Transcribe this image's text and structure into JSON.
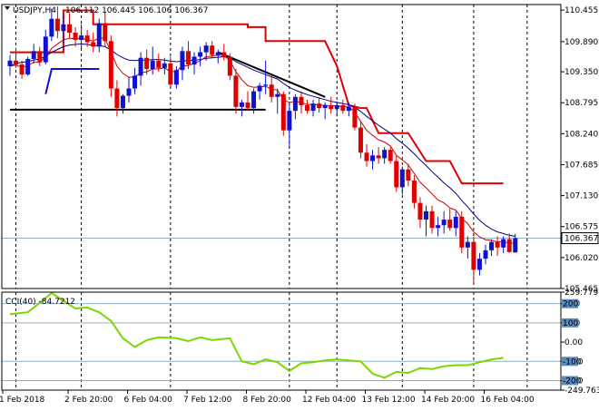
{
  "header": {
    "symbol_label": "USDJPY,H4",
    "ohlc_label": "106.112 106.445 106.106 106.367"
  },
  "indicator_header": {
    "label": "CCI(40) -84.7212"
  },
  "colors": {
    "bull": "#1010d0",
    "bear": "#e00000",
    "trend": "#000000",
    "upper_step": "#e00000",
    "lower_step": "#1010d0",
    "slow_ma": "#000080",
    "fast_ma": "#cc0000",
    "cci_line": "#7cd600",
    "level_line": "#8fb0c8",
    "grid": "#000000",
    "price_tag_bg": "#ffffff"
  },
  "chart_data": [
    {
      "type": "candlestick",
      "title": "USDJPY,H4",
      "ylim": [
        105.465,
        110.555
      ],
      "price_axis_ticks": [
        "110.455",
        "109.890",
        "109.350",
        "108.795",
        "108.240",
        "107.685",
        "107.130",
        "106.575",
        "106.020",
        "105.465"
      ],
      "price_axis_values": [
        110.455,
        109.89,
        109.35,
        108.795,
        108.24,
        107.685,
        107.13,
        106.575,
        106.02,
        105.465
      ],
      "current_price_label": "106.367",
      "current_price": 106.367,
      "x_ticks": [
        "1 Feb 2018",
        "2 Feb 20:00",
        "6 Feb 04:00",
        "7 Feb 12:00",
        "8 Feb 20:00",
        "12 Feb 04:00",
        "13 Feb 12:00",
        "14 Feb 20:00",
        "16 Feb 04:00"
      ],
      "x_tick_bars": [
        0,
        11,
        21,
        31,
        41,
        51,
        61,
        71,
        81
      ],
      "period_separator_bars": [
        1,
        12,
        27,
        47,
        55,
        66,
        78,
        87
      ],
      "candles": [
        [
          109.45,
          109.65,
          109.28,
          109.55
        ],
        [
          109.55,
          109.78,
          109.42,
          109.48
        ],
        [
          109.48,
          109.55,
          109.22,
          109.3
        ],
        [
          109.3,
          109.62,
          109.28,
          109.58
        ],
        [
          109.58,
          109.85,
          109.5,
          109.72
        ],
        [
          109.72,
          109.8,
          109.45,
          109.52
        ],
        [
          109.52,
          110.1,
          109.48,
          109.98
        ],
        [
          109.98,
          110.48,
          109.9,
          110.3
        ],
        [
          110.3,
          110.52,
          109.95,
          110.08
        ],
        [
          110.08,
          110.35,
          109.85,
          110.2
        ],
        [
          110.2,
          110.4,
          109.95,
          110.05
        ],
        [
          110.05,
          110.15,
          109.8,
          109.92
        ],
        [
          109.92,
          110.2,
          109.75,
          110.0
        ],
        [
          110.0,
          110.1,
          109.8,
          109.88
        ],
        [
          109.88,
          110.05,
          109.7,
          109.8
        ],
        [
          109.8,
          110.3,
          109.7,
          110.22
        ],
        [
          110.22,
          110.42,
          109.8,
          109.9
        ],
        [
          109.9,
          110.0,
          108.9,
          109.05
        ],
        [
          109.05,
          109.2,
          108.55,
          108.7
        ],
        [
          108.7,
          108.95,
          108.6,
          108.92
        ],
        [
          108.92,
          109.25,
          108.8,
          109.05
        ],
        [
          109.05,
          109.42,
          108.95,
          109.28
        ],
        [
          109.28,
          109.7,
          109.1,
          109.6
        ],
        [
          109.6,
          109.75,
          109.3,
          109.4
        ],
        [
          109.4,
          109.8,
          109.3,
          109.55
        ],
        [
          109.55,
          109.68,
          109.35,
          109.42
        ],
        [
          109.42,
          109.6,
          109.3,
          109.5
        ],
        [
          109.5,
          109.62,
          109.05,
          109.12
        ],
        [
          109.12,
          109.45,
          109.05,
          109.38
        ],
        [
          109.38,
          109.8,
          109.2,
          109.72
        ],
        [
          109.72,
          109.9,
          109.4,
          109.48
        ],
        [
          109.48,
          109.7,
          109.3,
          109.62
        ],
        [
          109.62,
          109.8,
          109.45,
          109.7
        ],
        [
          109.7,
          109.88,
          109.55,
          109.82
        ],
        [
          109.82,
          109.9,
          109.6,
          109.65
        ],
        [
          109.65,
          109.75,
          109.5,
          109.7
        ],
        [
          109.7,
          109.85,
          109.55,
          109.62
        ],
        [
          109.62,
          109.68,
          109.2,
          109.28
        ],
        [
          109.28,
          109.4,
          108.6,
          108.72
        ],
        [
          108.72,
          108.85,
          108.55,
          108.8
        ],
        [
          108.8,
          109.0,
          108.65,
          108.7
        ],
        [
          108.7,
          109.05,
          108.6,
          109.0
        ],
        [
          109.0,
          109.15,
          108.85,
          109.1
        ],
        [
          109.1,
          109.55,
          108.95,
          109.12
        ],
        [
          109.12,
          109.3,
          108.8,
          108.9
        ],
        [
          108.9,
          109.05,
          108.6,
          108.95
        ],
        [
          108.95,
          109.0,
          108.2,
          108.3
        ],
        [
          108.3,
          108.8,
          108.0,
          108.65
        ],
        [
          108.65,
          108.95,
          108.5,
          108.9
        ],
        [
          108.9,
          109.0,
          108.6,
          108.75
        ],
        [
          108.75,
          108.85,
          108.6,
          108.65
        ],
        [
          108.65,
          108.85,
          108.55,
          108.78
        ],
        [
          108.78,
          108.88,
          108.62,
          108.7
        ],
        [
          108.7,
          108.8,
          108.5,
          108.75
        ],
        [
          108.75,
          108.9,
          108.6,
          108.68
        ],
        [
          108.68,
          108.82,
          108.55,
          108.75
        ],
        [
          108.75,
          108.85,
          108.6,
          108.65
        ],
        [
          108.65,
          108.8,
          108.55,
          108.72
        ],
        [
          108.72,
          108.78,
          108.3,
          108.35
        ],
        [
          108.35,
          108.45,
          107.8,
          107.9
        ],
        [
          107.9,
          108.05,
          107.65,
          107.75
        ],
        [
          107.75,
          107.95,
          107.6,
          107.85
        ],
        [
          107.85,
          108.0,
          107.7,
          107.8
        ],
        [
          107.8,
          108.0,
          107.7,
          107.95
        ],
        [
          107.95,
          108.0,
          107.7,
          107.75
        ],
        [
          107.75,
          107.85,
          107.2,
          107.28
        ],
        [
          107.28,
          107.65,
          107.15,
          107.6
        ],
        [
          107.6,
          107.7,
          107.3,
          107.4
        ],
        [
          107.4,
          107.5,
          106.9,
          107.0
        ],
        [
          107.0,
          107.1,
          106.55,
          106.7
        ],
        [
          106.7,
          106.95,
          106.4,
          106.85
        ],
        [
          106.85,
          106.95,
          106.45,
          106.55
        ],
        [
          106.55,
          106.75,
          106.4,
          106.6
        ],
        [
          106.6,
          106.85,
          106.45,
          106.7
        ],
        [
          106.7,
          106.9,
          106.5,
          106.55
        ],
        [
          106.55,
          106.85,
          106.4,
          106.75
        ],
        [
          106.75,
          106.85,
          106.1,
          106.2
        ],
        [
          106.2,
          106.4,
          106.0,
          106.3
        ],
        [
          106.3,
          106.4,
          105.55,
          105.8
        ],
        [
          105.8,
          106.1,
          105.7,
          106.0
        ],
        [
          106.0,
          106.25,
          105.9,
          106.15
        ],
        [
          106.15,
          106.35,
          106.05,
          106.3
        ],
        [
          106.3,
          106.4,
          106.05,
          106.2
        ],
        [
          106.2,
          106.4,
          106.1,
          106.35
        ],
        [
          106.35,
          106.45,
          106.1,
          106.12
        ],
        [
          106.112,
          106.445,
          106.106,
          106.367
        ]
      ],
      "upper_step_line": [
        [
          0,
          109.7
        ],
        [
          9,
          109.7
        ],
        [
          9,
          110.45
        ],
        [
          14,
          110.45
        ],
        [
          14,
          110.2
        ],
        [
          40,
          110.2
        ],
        [
          40,
          110.15
        ],
        [
          43,
          110.15
        ],
        [
          43,
          109.9
        ],
        [
          53,
          109.9
        ],
        [
          53,
          109.9
        ],
        [
          55,
          109.45
        ],
        [
          57,
          108.75
        ],
        [
          59,
          108.7
        ],
        [
          60,
          108.7
        ],
        [
          62,
          108.25
        ],
        [
          67,
          108.25
        ],
        [
          70,
          107.75
        ],
        [
          74,
          107.75
        ],
        [
          76,
          107.35
        ],
        [
          83,
          107.35
        ]
      ],
      "lower_step_line": [
        [
          6,
          108.95
        ],
        [
          7,
          109.4
        ],
        [
          15,
          109.4
        ]
      ],
      "trend_lines": [
        [
          [
            0,
            108.67
          ],
          [
            43,
            108.67
          ]
        ],
        [
          [
            35,
            109.7
          ],
          [
            53,
            108.9
          ]
        ]
      ],
      "slow_ma": [
        109.45,
        109.5,
        109.52,
        109.53,
        109.56,
        109.58,
        109.63,
        109.7,
        109.75,
        109.8,
        109.83,
        109.84,
        109.85,
        109.84,
        109.82,
        109.82,
        109.8,
        109.74,
        109.66,
        109.6,
        109.56,
        109.55,
        109.56,
        109.56,
        109.57,
        109.57,
        109.56,
        109.54,
        109.53,
        109.54,
        109.55,
        109.56,
        109.57,
        109.59,
        109.6,
        109.61,
        109.62,
        109.6,
        109.53,
        109.48,
        109.43,
        109.38,
        109.34,
        109.3,
        109.26,
        109.22,
        109.14,
        109.07,
        109.02,
        108.98,
        108.94,
        108.91,
        108.88,
        108.85,
        108.82,
        108.8,
        108.78,
        108.76,
        108.72,
        108.64,
        108.55,
        108.47,
        108.39,
        108.32,
        108.25,
        108.15,
        108.07,
        107.98,
        107.88,
        107.77,
        107.67,
        107.56,
        107.46,
        107.36,
        107.27,
        107.17,
        107.04,
        106.93,
        106.8,
        106.69,
        106.6,
        106.53,
        106.48,
        106.45,
        106.42,
        106.4
      ],
      "fast_ma": [
        109.45,
        109.47,
        109.43,
        109.46,
        109.52,
        109.52,
        109.62,
        109.77,
        109.85,
        109.92,
        109.95,
        109.94,
        109.95,
        109.93,
        109.9,
        109.96,
        109.95,
        109.7,
        109.45,
        109.32,
        109.25,
        109.26,
        109.33,
        109.35,
        109.4,
        109.4,
        109.42,
        109.35,
        109.36,
        109.45,
        109.46,
        109.5,
        109.55,
        109.62,
        109.63,
        109.65,
        109.64,
        109.55,
        109.35,
        109.21,
        109.1,
        109.07,
        109.08,
        109.09,
        109.04,
        109.02,
        108.85,
        108.8,
        108.82,
        108.8,
        108.76,
        108.77,
        108.75,
        108.75,
        108.74,
        108.74,
        108.72,
        108.72,
        108.63,
        108.46,
        108.3,
        108.21,
        108.13,
        108.09,
        108.02,
        107.85,
        107.77,
        107.68,
        107.53,
        107.37,
        107.27,
        107.16,
        107.05,
        107.0,
        106.91,
        106.87,
        106.72,
        106.63,
        106.48,
        106.39,
        106.34,
        106.33,
        106.3,
        106.31,
        106.27,
        106.29
      ]
    },
    {
      "type": "line",
      "title": "CCI(40) -84.7212",
      "ylim": [
        -249.7632,
        259.7798
      ],
      "axis_ticks": [
        "259.7798",
        "200",
        "100",
        "0.00",
        "-100",
        "-200",
        "-249.7632"
      ],
      "axis_values": [
        259.7798,
        200,
        100,
        0,
        -100,
        -200,
        -249.7632
      ],
      "level_lines": [
        200,
        100,
        -100,
        -200
      ],
      "level_tag_labels": [
        "200",
        "100",
        "-100",
        "-200"
      ],
      "series": [
        {
          "x": [
            0,
            3,
            5,
            7,
            9,
            11,
            13,
            15,
            17,
            19,
            21,
            23,
            25,
            28,
            30,
            32,
            34,
            37,
            39,
            41,
            43,
            45,
            47,
            49,
            51,
            53,
            55,
            57,
            59,
            61,
            63,
            65,
            67,
            69,
            71,
            73,
            75,
            77,
            79,
            81,
            83
          ],
          "values": [
            145,
            155,
            205,
            255,
            215,
            175,
            180,
            155,
            110,
            20,
            -25,
            10,
            25,
            20,
            5,
            25,
            10,
            20,
            -100,
            -115,
            -90,
            -105,
            -150,
            -110,
            -105,
            -95,
            -90,
            -95,
            -100,
            -165,
            -185,
            -155,
            -160,
            -135,
            -140,
            -125,
            -120,
            -120,
            -105,
            -90,
            -82
          ]
        }
      ]
    }
  ]
}
